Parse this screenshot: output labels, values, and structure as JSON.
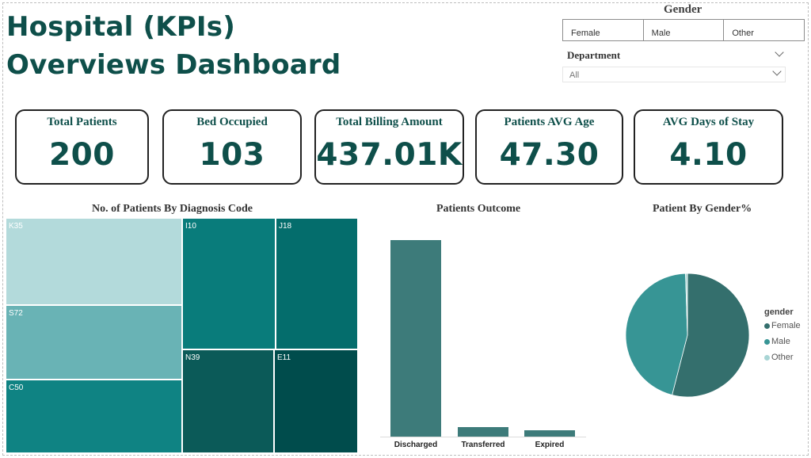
{
  "dashboard": {
    "title_line1": "Hospital (KPIs)",
    "title_line2": "Overviews Dashboard"
  },
  "filters": {
    "gender_title": "Gender",
    "gender_options": [
      "Female",
      "Male",
      "Other"
    ],
    "department_title": "Department",
    "department_value": "All"
  },
  "kpis": [
    {
      "label": "Total Patients",
      "value": "200"
    },
    {
      "label": "Bed Occupied",
      "value": "103"
    },
    {
      "label": "Total Billing Amount",
      "value": "437.01K"
    },
    {
      "label": "Patients AVG Age",
      "value": "47.30"
    },
    {
      "label": "AVG Days of Stay",
      "value": "4.10"
    }
  ],
  "charts": {
    "treemap_title": "No. of Patients By Diagnosis Code",
    "treemap_cells": [
      {
        "code": "K35",
        "color": "#b3dadb"
      },
      {
        "code": "S72",
        "color": "#69b3b5"
      },
      {
        "code": "C50",
        "color": "#0f8383"
      },
      {
        "code": "I10",
        "color": "#097c7b"
      },
      {
        "code": "J18",
        "color": "#046d6c"
      },
      {
        "code": "N39",
        "color": "#0b5a58"
      },
      {
        "code": "E11",
        "color": "#004c4c"
      }
    ],
    "outcome_title": "Patients Outcome",
    "gender_title": "Patient By Gender%",
    "legend_title": "gender"
  },
  "chart_data": [
    {
      "type": "bar",
      "title": "Patients Outcome",
      "categories": [
        "Discharged",
        "Transferred",
        "Expired"
      ],
      "values": [
        180,
        9,
        6
      ]
    },
    {
      "type": "pie",
      "title": "Patient By Gender%",
      "legend_title": "gender",
      "legend_position": "right",
      "labels": [
        "Female",
        "Male",
        "Other"
      ],
      "values": [
        54,
        45.5,
        0.5
      ],
      "colors": [
        "#346f6d",
        "#379595",
        "#a8d5d5"
      ]
    }
  ]
}
